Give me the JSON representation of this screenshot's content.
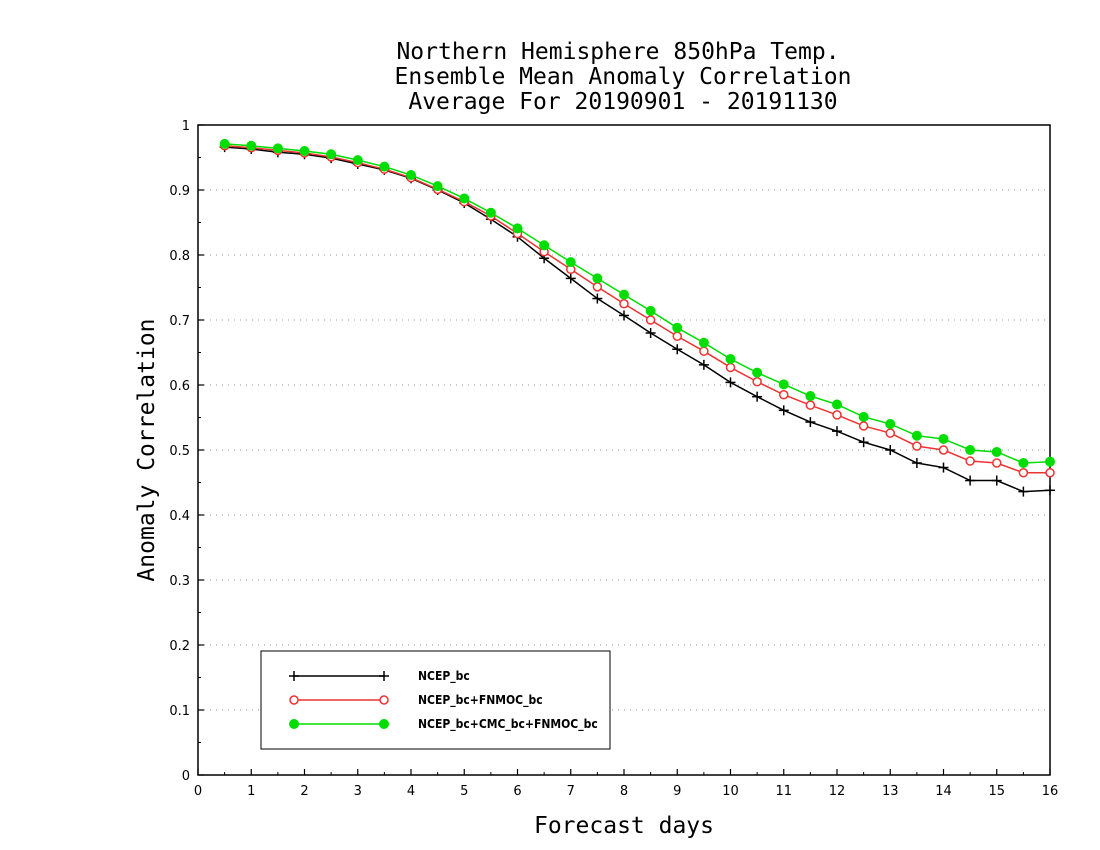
{
  "chart_data": {
    "type": "line",
    "title": [
      "Northern Hemisphere 850hPa Temp.",
      "Ensemble Mean Anomaly Correlation",
      "Average For 20190901 - 20191130"
    ],
    "xlabel": "Forecast days",
    "ylabel": "Anomaly Correlation",
    "xlim": [
      0,
      16
    ],
    "ylim": [
      0,
      1
    ],
    "x_ticks": [
      "0",
      "1",
      "2",
      "3",
      "4",
      "5",
      "6",
      "7",
      "8",
      "9",
      "10",
      "11",
      "12",
      "13",
      "14",
      "15",
      "16"
    ],
    "y_ticks": [
      "0",
      "0.1",
      "0.2",
      "0.3",
      "0.4",
      "0.5",
      "0.6",
      "0.7",
      "0.8",
      "0.9",
      "1"
    ],
    "grid": true,
    "legend_position": "bottom-left",
    "x": [
      0.5,
      1,
      1.5,
      2,
      2.5,
      3,
      3.5,
      4,
      4.5,
      5,
      5.5,
      6,
      6.5,
      7,
      7.5,
      8,
      8.5,
      9,
      9.5,
      10,
      10.5,
      11,
      11.5,
      12,
      12.5,
      13,
      13.5,
      14,
      14.5,
      15,
      15.5,
      16
    ],
    "series": [
      {
        "name": "NCEP_bc",
        "color": "#000000",
        "marker": "plus",
        "values": [
          0.966,
          0.963,
          0.958,
          0.955,
          0.949,
          0.94,
          0.931,
          0.918,
          0.9,
          0.88,
          0.855,
          0.828,
          0.795,
          0.764,
          0.733,
          0.707,
          0.68,
          0.655,
          0.631,
          0.604,
          0.582,
          0.561,
          0.543,
          0.529,
          0.512,
          0.5,
          0.48,
          0.473,
          0.453,
          0.453,
          0.436,
          0.438
        ]
      },
      {
        "name": "NCEP_bc+FNMOC_bc",
        "color": "#ee3333",
        "marker": "circle-open",
        "values": [
          0.968,
          0.965,
          0.961,
          0.957,
          0.951,
          0.942,
          0.932,
          0.919,
          0.901,
          0.882,
          0.86,
          0.833,
          0.805,
          0.778,
          0.751,
          0.725,
          0.7,
          0.675,
          0.652,
          0.627,
          0.605,
          0.585,
          0.569,
          0.554,
          0.537,
          0.526,
          0.506,
          0.5,
          0.483,
          0.48,
          0.465,
          0.465
        ]
      },
      {
        "name": "NCEP_bc+CMC_bc+FNMOC_bc",
        "color": "#00dd00",
        "marker": "circle-filled",
        "values": [
          0.971,
          0.968,
          0.964,
          0.96,
          0.955,
          0.946,
          0.936,
          0.923,
          0.906,
          0.887,
          0.865,
          0.841,
          0.815,
          0.789,
          0.764,
          0.739,
          0.714,
          0.688,
          0.665,
          0.64,
          0.619,
          0.601,
          0.583,
          0.57,
          0.551,
          0.54,
          0.522,
          0.517,
          0.5,
          0.497,
          0.48,
          0.482
        ]
      }
    ]
  }
}
